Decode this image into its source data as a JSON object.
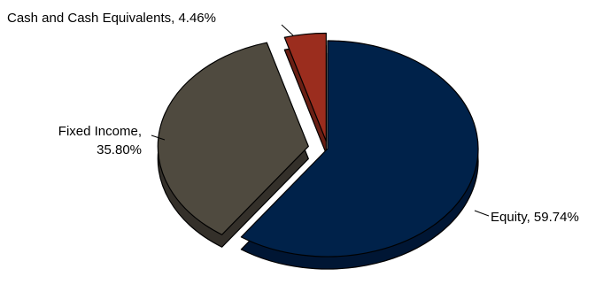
{
  "chart_data": {
    "type": "pie",
    "title": "",
    "slices": [
      {
        "name": "Equity",
        "value": 59.74,
        "label": "Equity, 59.74%",
        "color": "#00224a",
        "side_color": "#001634"
      },
      {
        "name": "Fixed Income",
        "value": 35.8,
        "label_lines": [
          "Fixed Income,",
          "35.80%"
        ],
        "color": "#4f4a3f",
        "side_color": "#34302a"
      },
      {
        "name": "Cash and Cash Equivalents",
        "value": 4.46,
        "label": "Cash and Cash Equivalents, 4.46%",
        "color": "#9b2d1e",
        "side_color": "#6a1f14"
      }
    ],
    "exploded": true,
    "three_d": true,
    "legend": "none"
  }
}
